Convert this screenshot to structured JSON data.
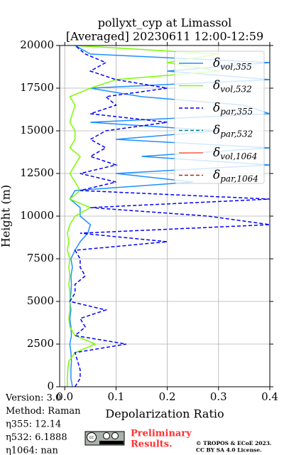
{
  "chart_data": {
    "type": "line",
    "title": "pollyxt_cyp at Limassol",
    "subtitle": "[Averaged] 20230611 12:00-12:59",
    "x_label": "Depolarization Ratio",
    "y_label": "Height (m)",
    "orientation": "vertical-profile",
    "y": [
      0,
      500,
      1000,
      1500,
      2000,
      2500,
      3000,
      3500,
      4000,
      4500,
      5000,
      5500,
      6000,
      6500,
      7000,
      7500,
      8000,
      8500,
      9000,
      9500,
      10000,
      10500,
      11000,
      11500,
      12000,
      12500,
      13000,
      13500,
      14000,
      14500,
      15000,
      15500,
      16000,
      16500,
      17000,
      17500,
      18000,
      18500,
      19000,
      19500,
      20000
    ],
    "series": [
      {
        "name": "δvol,355",
        "color": "#1e90ff",
        "linestyle": "solid",
        "values": [
          0.015,
          0.012,
          0.012,
          0.013,
          0.012,
          0.01,
          0.013,
          0.012,
          0.01,
          0.012,
          0.01,
          0.012,
          0.013,
          0.012,
          0.015,
          0.012,
          0.02,
          0.03,
          0.045,
          0.05,
          0.03,
          0.03,
          0.01,
          0.02,
          0.25,
          0.1,
          0.4,
          0.15,
          0.4,
          0.1,
          0.3,
          0.05,
          0.4,
          0.35,
          0.15,
          0.05,
          0.4,
          0.2,
          0.4,
          0.05,
          0.02
        ]
      },
      {
        "name": "δvol,532",
        "color": "#7cfc00",
        "linestyle": "solid",
        "values": [
          0.005,
          0.005,
          0.006,
          0.008,
          0.02,
          0.06,
          0.02,
          0.01,
          0.008,
          0.01,
          0.01,
          0.01,
          0.008,
          0.01,
          0.008,
          0.01,
          0.005,
          0.008,
          0.005,
          0.01,
          0.02,
          0.05,
          0.01,
          0.03,
          0.02,
          0.01,
          0.02,
          0.03,
          0.01,
          0.02,
          0.02,
          0.01,
          0.015,
          0.02,
          0.01,
          0.05,
          0.1,
          0.3,
          0.2,
          0.3,
          0.02
        ]
      },
      {
        "name": "δpar,355",
        "color": "#0000ff",
        "linestyle": "dashed",
        "values": [
          0.02,
          0.03,
          0.03,
          0.025,
          0.02,
          0.12,
          0.02,
          0.04,
          0.03,
          0.08,
          0.01,
          0.02,
          0.02,
          0.04,
          0.03,
          0.03,
          0.02,
          0.2,
          0.03,
          0.4,
          0.28,
          0.05,
          0.4,
          0.03,
          0.1,
          0.03,
          0.1,
          0.05,
          0.08,
          0.05,
          0.08,
          0.2,
          0.05,
          0.1,
          0.08,
          0.2,
          0.1,
          0.05,
          0.08,
          0.04,
          0.02
        ]
      },
      {
        "name": "δpar,532",
        "color": "#008080",
        "linestyle": "dashed",
        "values": [
          null,
          null,
          null,
          null,
          null,
          null,
          null,
          null,
          null,
          null,
          null,
          null,
          null,
          null,
          null,
          null,
          null,
          null,
          null,
          null,
          null,
          null,
          null,
          null,
          null,
          null,
          null,
          null,
          null,
          null,
          null,
          null,
          null,
          null,
          null,
          null,
          null,
          null,
          null,
          null,
          null
        ]
      },
      {
        "name": "δvol,1064",
        "color": "#ff6347",
        "linestyle": "solid",
        "values": [
          null,
          null,
          null,
          null,
          null,
          null,
          null,
          null,
          null,
          null,
          null,
          null,
          null,
          null,
          null,
          null,
          null,
          null,
          null,
          null,
          null,
          null,
          null,
          null,
          null,
          null,
          null,
          null,
          null,
          null,
          null,
          null,
          null,
          null,
          null,
          null,
          null,
          null,
          null,
          null,
          null
        ]
      },
      {
        "name": "δpar,1064",
        "color": "#b22222",
        "linestyle": "dashed",
        "values": [
          null,
          null,
          null,
          null,
          null,
          null,
          null,
          null,
          null,
          null,
          null,
          null,
          null,
          null,
          null,
          null,
          null,
          null,
          null,
          null,
          null,
          null,
          null,
          null,
          null,
          null,
          null,
          null,
          null,
          null,
          null,
          null,
          null,
          null,
          null,
          null,
          null,
          null,
          null,
          null,
          null
        ]
      }
    ],
    "xlim": [
      -0.01,
      0.4
    ],
    "xticks": [
      {
        "value": 0,
        "label": "0.0"
      },
      0.1,
      0.2,
      0.3,
      0.4
    ],
    "ylim": [
      0,
      20000
    ],
    "yticks": [
      0,
      2500,
      5000,
      7500,
      10000,
      12500,
      15000,
      17500,
      20000
    ],
    "grid": true,
    "legend": "upper right",
    "info": [
      "Version: 3.0",
      "Method: Raman",
      "η355:  12.14",
      "η532: 6.1888",
      "η1064:    nan"
    ],
    "notice": [
      "Preliminary",
      "Results."
    ],
    "copyright": [
      "© TROPOS & ECoE 2023.",
      "CC BY SA 4.0 License."
    ]
  }
}
